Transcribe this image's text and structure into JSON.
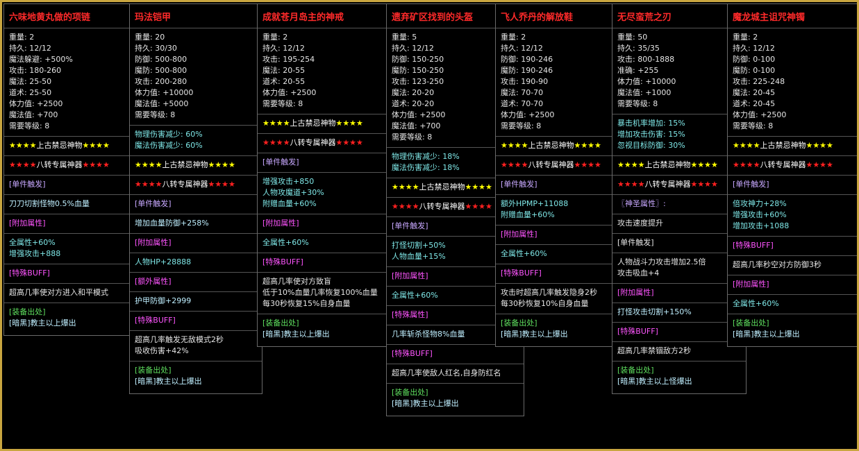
{
  "panels": [
    {
      "title": "六味地黄丸做的项链",
      "sections": [
        [
          {
            "text": "重量: 2",
            "color": "#e6e6e6"
          },
          {
            "text": "持久: 12/12",
            "color": "#e6e6e6"
          },
          {
            "text": "魔法躲避: +500%",
            "color": "#e6e6e6"
          },
          {
            "text": "攻击: 180-260",
            "color": "#e6e6e6"
          },
          {
            "text": "魔法: 25-50",
            "color": "#e6e6e6"
          },
          {
            "text": "道术: 25-50",
            "color": "#e6e6e6"
          },
          {
            "text": "体力值: +2500",
            "color": "#e6e6e6"
          },
          {
            "text": "魔法值: +700",
            "color": "#e6e6e6"
          },
          {
            "text": "需要等级: 8",
            "color": "#e6e6e6"
          }
        ],
        [
          {
            "text": "★★★★上古禁忌神物★★★★",
            "color": "#ffff00"
          }
        ],
        [
          {
            "text": "★★★★八转专属神器★★★★",
            "color": "#ff2020"
          }
        ],
        [
          {
            "text": "[单件触发]",
            "color": "#c8a8ff"
          }
        ],
        [
          {
            "text": "刀刀切割怪物0.5%血量",
            "color": "#bfefff"
          }
        ],
        [
          {
            "text": "[附加属性]",
            "color": "#ff55ff"
          }
        ],
        [
          {
            "text": "全属性+60%",
            "color": "#7fe7e7"
          },
          {
            "text": "增强攻击+888",
            "color": "#7fe7e7"
          }
        ],
        [
          {
            "text": "[特殊BUFF]",
            "color": "#ff55ff"
          }
        ],
        [
          {
            "text": "超高几率使对方进入和平模式",
            "color": "#e6e6e6"
          }
        ],
        [
          {
            "text": "[装备出处]",
            "color": "#5fdf5f"
          },
          {
            "text": "[暗黑]教主以上爆出",
            "color": "#bfefff"
          }
        ]
      ]
    },
    {
      "title": "玛法铠甲",
      "sections": [
        [
          {
            "text": "重量: 20",
            "color": "#e6e6e6"
          },
          {
            "text": "持久: 30/30",
            "color": "#e6e6e6"
          },
          {
            "text": "防御: 500-800",
            "color": "#e6e6e6"
          },
          {
            "text": "魔防: 500-800",
            "color": "#e6e6e6"
          },
          {
            "text": "攻击: 200-280",
            "color": "#e6e6e6"
          },
          {
            "text": "体力值: +10000",
            "color": "#e6e6e6"
          },
          {
            "text": "魔法值: +5000",
            "color": "#e6e6e6"
          },
          {
            "text": "需要等级: 8",
            "color": "#e6e6e6"
          }
        ],
        [
          {
            "text": "物理伤害减少: 60%",
            "color": "#7fe7e7"
          },
          {
            "text": "魔法伤害减少: 60%",
            "color": "#7fe7e7"
          }
        ],
        [
          {
            "text": "★★★★上古禁忌神物★★★★",
            "color": "#ffff00"
          }
        ],
        [
          {
            "text": "★★★★八转专属神器★★★★",
            "color": "#ff2020"
          }
        ],
        [
          {
            "text": "[单件触发]",
            "color": "#c8a8ff"
          }
        ],
        [
          {
            "text": "增加血量防御+258%",
            "color": "#bfefff"
          }
        ],
        [
          {
            "text": "[附加属性]",
            "color": "#ff55ff"
          }
        ],
        [
          {
            "text": "人物HP+28888",
            "color": "#7fe7e7"
          }
        ],
        [
          {
            "text": "[额外属性]",
            "color": "#ff55ff"
          }
        ],
        [
          {
            "text": "护甲防御+2999",
            "color": "#bfefff"
          }
        ],
        [
          {
            "text": "[特殊BUFF]",
            "color": "#ff55ff"
          }
        ],
        [
          {
            "text": "超高几率触发无敌模式2秒",
            "color": "#e6e6e6"
          },
          {
            "text": "吸收伤害+42%",
            "color": "#e6e6e6"
          }
        ],
        [
          {
            "text": "[装备出处]",
            "color": "#5fdf5f"
          },
          {
            "text": "[暗黑]教主以上爆出",
            "color": "#bfefff"
          }
        ]
      ]
    },
    {
      "title": "成就苍月岛主的神戒",
      "sections": [
        [
          {
            "text": "重量: 2",
            "color": "#e6e6e6"
          },
          {
            "text": "持久: 12/12",
            "color": "#e6e6e6"
          },
          {
            "text": "攻击: 195-254",
            "color": "#e6e6e6"
          },
          {
            "text": "魔法: 20-55",
            "color": "#e6e6e6"
          },
          {
            "text": "道术: 20-55",
            "color": "#e6e6e6"
          },
          {
            "text": "体力值: +2500",
            "color": "#e6e6e6"
          },
          {
            "text": "需要等级: 8",
            "color": "#e6e6e6"
          }
        ],
        [
          {
            "text": "★★★★上古禁忌神物★★★★",
            "color": "#ffff00"
          }
        ],
        [
          {
            "text": "★★★★八转专属神器★★★★",
            "color": "#ff2020"
          }
        ],
        [
          {
            "text": "[单件触发]",
            "color": "#c8a8ff"
          }
        ],
        [
          {
            "text": "增强攻击+850",
            "color": "#7fe7e7"
          },
          {
            "text": "人物攻魔道+30%",
            "color": "#7fe7e7"
          },
          {
            "text": "附赠血量+60%",
            "color": "#7fe7e7"
          }
        ],
        [
          {
            "text": "[附加属性]",
            "color": "#ff55ff"
          }
        ],
        [
          {
            "text": "全属性+60%",
            "color": "#7fe7e7"
          }
        ],
        [
          {
            "text": "[特殊BUFF]",
            "color": "#ff55ff"
          }
        ],
        [
          {
            "text": "超高几率使对方致盲",
            "color": "#e6e6e6"
          },
          {
            "text": "低于10%血量几率恢复100%血量",
            "color": "#e6e6e6"
          },
          {
            "text": "每30秒恢复15%自身血量",
            "color": "#e6e6e6"
          }
        ],
        [
          {
            "text": "[装备出处]",
            "color": "#5fdf5f"
          },
          {
            "text": "[暗黑]教主以上爆出",
            "color": "#bfefff"
          }
        ]
      ]
    },
    {
      "title": "遗弃矿区找到的头盔",
      "sections": [
        [
          {
            "text": "重量: 5",
            "color": "#e6e6e6"
          },
          {
            "text": "持久: 12/12",
            "color": "#e6e6e6"
          },
          {
            "text": "防御: 150-250",
            "color": "#e6e6e6"
          },
          {
            "text": "魔防: 150-250",
            "color": "#e6e6e6"
          },
          {
            "text": "攻击: 123-250",
            "color": "#e6e6e6"
          },
          {
            "text": "魔法: 20-20",
            "color": "#e6e6e6"
          },
          {
            "text": "道术: 20-20",
            "color": "#e6e6e6"
          },
          {
            "text": "体力值: +2500",
            "color": "#e6e6e6"
          },
          {
            "text": "魔法值: +700",
            "color": "#e6e6e6"
          },
          {
            "text": "需要等级: 8",
            "color": "#e6e6e6"
          }
        ],
        [
          {
            "text": "物理伤害减少: 18%",
            "color": "#7fe7e7"
          },
          {
            "text": "魔法伤害减少: 18%",
            "color": "#7fe7e7"
          }
        ],
        [
          {
            "text": "★★★★上古禁忌神物★★★★",
            "color": "#ffff00"
          }
        ],
        [
          {
            "text": "★★★★八转专属神器★★★★",
            "color": "#ff2020"
          }
        ],
        [
          {
            "text": "[单件触发]",
            "color": "#c8a8ff"
          }
        ],
        [
          {
            "text": "打怪切割+50%",
            "color": "#7fe7e7"
          },
          {
            "text": "人物血量+15%",
            "color": "#7fe7e7"
          }
        ],
        [
          {
            "text": "[附加属性]",
            "color": "#ff55ff"
          }
        ],
        [
          {
            "text": "全属性+60%",
            "color": "#7fe7e7"
          }
        ],
        [
          {
            "text": "[特殊属性]",
            "color": "#ff55ff"
          }
        ],
        [
          {
            "text": "几率斩杀怪物8%血量",
            "color": "#bfefff"
          }
        ],
        [
          {
            "text": "[特殊BUFF]",
            "color": "#ff55ff"
          }
        ],
        [
          {
            "text": "超高几率使敌人红名,自身防红名",
            "color": "#e6e6e6"
          }
        ],
        [
          {
            "text": "[装备出处]",
            "color": "#5fdf5f"
          },
          {
            "text": "[暗黑]教主以上爆出",
            "color": "#bfefff"
          }
        ]
      ]
    },
    {
      "title": "飞人乔丹的解放鞋",
      "sections": [
        [
          {
            "text": "重量: 2",
            "color": "#e6e6e6"
          },
          {
            "text": "持久: 12/12",
            "color": "#e6e6e6"
          },
          {
            "text": "防御: 190-246",
            "color": "#e6e6e6"
          },
          {
            "text": "魔防: 190-246",
            "color": "#e6e6e6"
          },
          {
            "text": "攻击: 190-90",
            "color": "#e6e6e6"
          },
          {
            "text": "魔法: 70-70",
            "color": "#e6e6e6"
          },
          {
            "text": "道术: 70-70",
            "color": "#e6e6e6"
          },
          {
            "text": "体力值: +2500",
            "color": "#e6e6e6"
          },
          {
            "text": "需要等级: 8",
            "color": "#e6e6e6"
          }
        ],
        [
          {
            "text": "★★★★上古禁忌神物★★★★",
            "color": "#ffff00"
          }
        ],
        [
          {
            "text": "★★★★八转专属神器★★★★",
            "color": "#ff2020"
          }
        ],
        [
          {
            "text": "[单件触发]",
            "color": "#c8a8ff"
          }
        ],
        [
          {
            "text": "额外HPMP+11088",
            "color": "#7fe7e7"
          },
          {
            "text": "附赠血量+60%",
            "color": "#7fe7e7"
          }
        ],
        [
          {
            "text": "[附加属性]",
            "color": "#ff55ff"
          }
        ],
        [
          {
            "text": "全属性+60%",
            "color": "#7fe7e7"
          }
        ],
        [
          {
            "text": "[特殊BUFF]",
            "color": "#ff55ff"
          }
        ],
        [
          {
            "text": "攻击时超高几率触发隐身2秒",
            "color": "#e6e6e6"
          },
          {
            "text": "每30秒恢复10%自身血量",
            "color": "#e6e6e6"
          }
        ],
        [
          {
            "text": "[装备出处]",
            "color": "#5fdf5f"
          },
          {
            "text": "[暗黑]教主以上爆出",
            "color": "#bfefff"
          }
        ]
      ]
    },
    {
      "title": "无尽蛮荒之刃",
      "sections": [
        [
          {
            "text": "重量: 50",
            "color": "#e6e6e6"
          },
          {
            "text": "持久: 35/35",
            "color": "#e6e6e6"
          },
          {
            "text": "攻击: 800-1888",
            "color": "#e6e6e6"
          },
          {
            "text": "准确: +255",
            "color": "#e6e6e6"
          },
          {
            "text": "体力值: +10000",
            "color": "#e6e6e6"
          },
          {
            "text": "魔法值: +1000",
            "color": "#e6e6e6"
          },
          {
            "text": "需要等级: 8",
            "color": "#e6e6e6"
          }
        ],
        [
          {
            "text": "暴击机率增加: 15%",
            "color": "#7fe7e7"
          },
          {
            "text": "增加攻击伤害: 15%",
            "color": "#7fe7e7"
          },
          {
            "text": "忽视目标防御: 30%",
            "color": "#7fe7e7"
          }
        ],
        [
          {
            "text": "★★★★上古禁忌神物★★★★",
            "color": "#ffff00"
          }
        ],
        [
          {
            "text": "★★★★八转专属神器★★★★",
            "color": "#ff2020"
          }
        ],
        [
          {
            "text": "〖神圣属性〗:",
            "color": "#c8a8ff"
          }
        ],
        [
          {
            "text": "攻击速度提升",
            "color": "#e6e6e6"
          }
        ],
        [
          {
            "text": "[单件触发]",
            "color": "#e6e6e6"
          }
        ],
        [
          {
            "text": "人物战斗力攻击增加2.5倍",
            "color": "#e6e6e6"
          },
          {
            "text": "攻击吸血+4",
            "color": "#e6e6e6"
          }
        ],
        [
          {
            "text": "[附加属性]",
            "color": "#ff55ff"
          }
        ],
        [
          {
            "text": "打怪攻击切割+150%",
            "color": "#bfefff"
          }
        ],
        [
          {
            "text": "[特殊BUFF]",
            "color": "#ff55ff"
          }
        ],
        [
          {
            "text": "超高几率禁锢敌方2秒",
            "color": "#e6e6e6"
          }
        ],
        [
          {
            "text": "[装备出处]",
            "color": "#5fdf5f"
          },
          {
            "text": "[暗黑]教主以上怪爆出",
            "color": "#bfefff"
          }
        ]
      ]
    },
    {
      "title": "魔龙城主诅咒神镯",
      "sections": [
        [
          {
            "text": "重量: 2",
            "color": "#e6e6e6"
          },
          {
            "text": "持久: 12/12",
            "color": "#e6e6e6"
          },
          {
            "text": "防御: 0-100",
            "color": "#e6e6e6"
          },
          {
            "text": "魔防: 0-100",
            "color": "#e6e6e6"
          },
          {
            "text": "攻击: 225-248",
            "color": "#e6e6e6"
          },
          {
            "text": "魔法: 20-45",
            "color": "#e6e6e6"
          },
          {
            "text": "道术: 20-45",
            "color": "#e6e6e6"
          },
          {
            "text": "体力值: +2500",
            "color": "#e6e6e6"
          },
          {
            "text": "需要等级: 8",
            "color": "#e6e6e6"
          }
        ],
        [
          {
            "text": "★★★★上古禁忌神物★★★★",
            "color": "#ffff00"
          }
        ],
        [
          {
            "text": "★★★★八转专属神器★★★★",
            "color": "#ff2020"
          }
        ],
        [
          {
            "text": "[单件触发]",
            "color": "#c8a8ff"
          }
        ],
        [
          {
            "text": "倍攻神力+28%",
            "color": "#7fe7e7"
          },
          {
            "text": "增强攻击+60%",
            "color": "#7fe7e7"
          },
          {
            "text": "增加攻击+1088",
            "color": "#7fe7e7"
          }
        ],
        [
          {
            "text": "[特殊BUFF]",
            "color": "#ff55ff"
          }
        ],
        [
          {
            "text": "超高几率秒空对方防御3秒",
            "color": "#e6e6e6"
          }
        ],
        [
          {
            "text": "[附加属性]",
            "color": "#ff55ff"
          }
        ],
        [
          {
            "text": "全属性+60%",
            "color": "#7fe7e7"
          }
        ],
        [
          {
            "text": "[装备出处]",
            "color": "#5fdf5f"
          },
          {
            "text": "[暗黑]教主以上爆出",
            "color": "#bfefff"
          }
        ]
      ]
    }
  ]
}
